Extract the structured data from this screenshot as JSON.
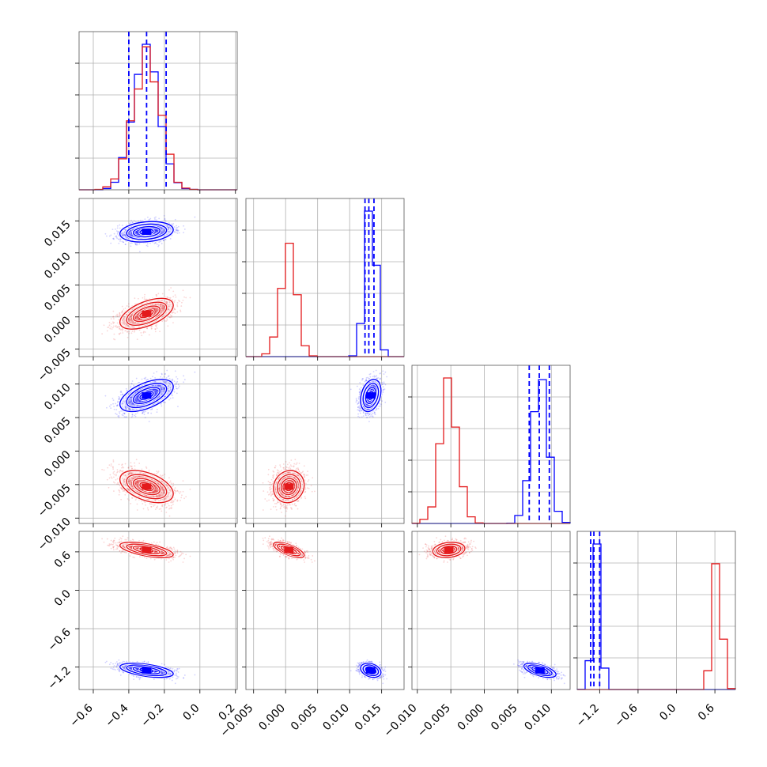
{
  "colors": {
    "blue": "#0000ff",
    "red": "#e31a1c",
    "grid": "#b0b0b0"
  },
  "chart_data": {
    "type": "corner",
    "parameters": 4,
    "grid": true,
    "ranges": [
      [
        -0.68,
        0.21
      ],
      [
        -0.0062,
        0.0185
      ],
      [
        -0.0108,
        0.0128
      ],
      [
        -1.55,
        0.92
      ]
    ],
    "ticks": [
      [
        -0.6,
        -0.4,
        -0.2,
        0.0,
        0.2
      ],
      [
        -0.005,
        0.0,
        0.005,
        0.01,
        0.015
      ],
      [
        -0.01,
        -0.005,
        0.0,
        0.005,
        0.01
      ],
      [
        -1.2,
        -0.6,
        0.0,
        0.6
      ]
    ],
    "tick_labels": [
      [
        "−0.6",
        "−0.4",
        "−0.2",
        "0.0",
        "0.2"
      ],
      [
        "−0.005",
        "0.000",
        "0.005",
        "0.010",
        "0.015"
      ],
      [
        "−0.010",
        "−0.005",
        "0.000",
        "0.005",
        "0.010"
      ],
      [
        "−1.2",
        "−0.6",
        "0.0",
        "0.6"
      ]
    ],
    "series": [
      {
        "color": "blue",
        "means": [
          -0.3,
          0.0133,
          0.0083,
          -1.25
        ],
        "sds": [
          0.075,
          0.0008,
          0.0012,
          0.055
        ],
        "corr": [
          [
            1,
            0.2,
            0.55,
            -0.5
          ],
          [
            0.2,
            1,
            0.3,
            -0.3
          ],
          [
            0.55,
            0.3,
            1,
            -0.6
          ],
          [
            -0.5,
            -0.3,
            -0.6,
            1
          ]
        ],
        "quantiles": [
          [
            -0.4,
            -0.3,
            -0.19
          ],
          [
            0.0124,
            0.013,
            0.0138
          ],
          [
            0.0067,
            0.0082,
            0.0097
          ],
          [
            -1.34,
            -1.29,
            -1.2
          ]
        ]
      },
      {
        "color": "red",
        "means": [
          -0.3,
          0.0005,
          -0.0053,
          0.63
        ],
        "sds": [
          0.075,
          0.0012,
          0.0012,
          0.06
        ],
        "corr": [
          [
            1,
            0.55,
            -0.45,
            -0.6
          ],
          [
            0.55,
            1,
            0.1,
            -0.7
          ],
          [
            -0.45,
            0.1,
            1,
            0.2
          ],
          [
            -0.6,
            -0.7,
            0.2,
            1
          ]
        ]
      }
    ]
  }
}
